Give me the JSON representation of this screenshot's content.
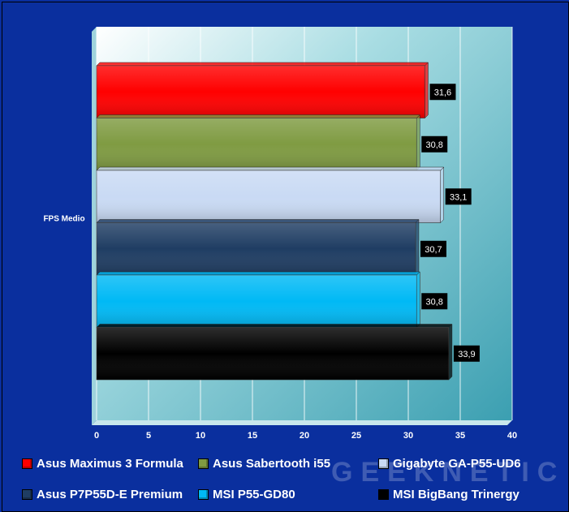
{
  "chart_data": {
    "type": "bar",
    "orientation": "horizontal",
    "categories": [
      "FPS Medio"
    ],
    "series": [
      {
        "name": "Asus Maximus 3 Formula",
        "values": [
          31.6
        ],
        "label": "31,6",
        "color": "#ff0000"
      },
      {
        "name": "Asus Sabertooth i55",
        "values": [
          30.8
        ],
        "label": "30,8",
        "color": "#7f9b42"
      },
      {
        "name": "Gigabyte GA-P55-UD6",
        "values": [
          33.1
        ],
        "label": "33,1",
        "color": "#c9daf4"
      },
      {
        "name": "Asus P7P55D-E Premium",
        "values": [
          30.7
        ],
        "label": "30,7",
        "color": "#1f3d63"
      },
      {
        "name": "MSI P55-GD80",
        "values": [
          30.8
        ],
        "label": "30,8",
        "color": "#00b9f5"
      },
      {
        "name": "MSI BigBang Trinergy",
        "values": [
          33.9
        ],
        "label": "33,9",
        "color": "#000000"
      }
    ],
    "xlim": [
      0,
      40
    ],
    "xticks": [
      "0",
      "5",
      "10",
      "15",
      "20",
      "25",
      "30",
      "35",
      "40"
    ],
    "grid": true,
    "legend": "bottom",
    "plot_background": "#4ba9b9"
  },
  "watermark": "GEEKNETIC"
}
